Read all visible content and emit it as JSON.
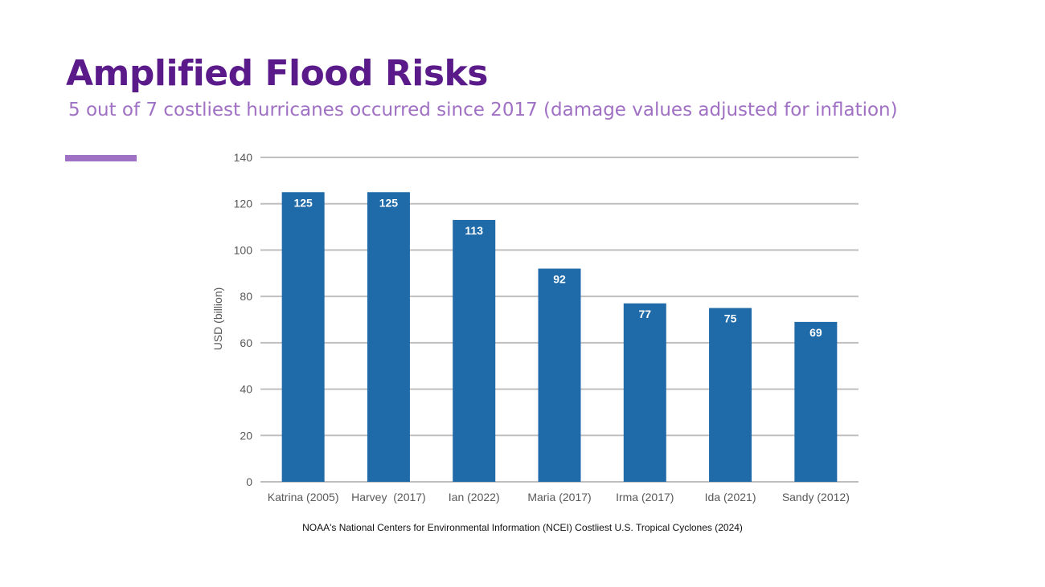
{
  "slide": {
    "title": "Amplified Flood Risks",
    "subtitle": "5 out of 7 costliest hurricanes occurred since 2017 (damage values adjusted for inflation)",
    "source": "NOAA's National Centers for Environmental Information (NCEI) Costliest U.S. Tropical Cyclones (2024)"
  },
  "colors": {
    "title": "#5a1a8a",
    "subtitle": "#a070c4",
    "accent_bar": "#a070c4",
    "bar": "#1f6aa8",
    "grid": "#bfbfbf",
    "tick_text": "#595959",
    "data_label": "#ffffff"
  },
  "chart_data": {
    "type": "bar",
    "categories": [
      "Katrina (2005)",
      "Harvey  (2017)",
      "Ian (2022)",
      "Maria (2017)",
      "Irma (2017)",
      "Ida (2021)",
      "Sandy (2012)"
    ],
    "values": [
      125,
      125,
      113,
      92,
      77,
      75,
      69
    ],
    "data_labels": [
      "125",
      "125",
      "113",
      "92",
      "77",
      "75",
      "69"
    ],
    "title": "",
    "xlabel": "",
    "ylabel": "USD (billion)",
    "ylim": [
      0,
      140
    ],
    "yticks": [
      0,
      20,
      40,
      60,
      80,
      100,
      120,
      140
    ],
    "ytick_labels": [
      "0",
      "20",
      "40",
      "60",
      "80",
      "100",
      "120",
      "140"
    ],
    "grid": true,
    "legend": "none"
  }
}
